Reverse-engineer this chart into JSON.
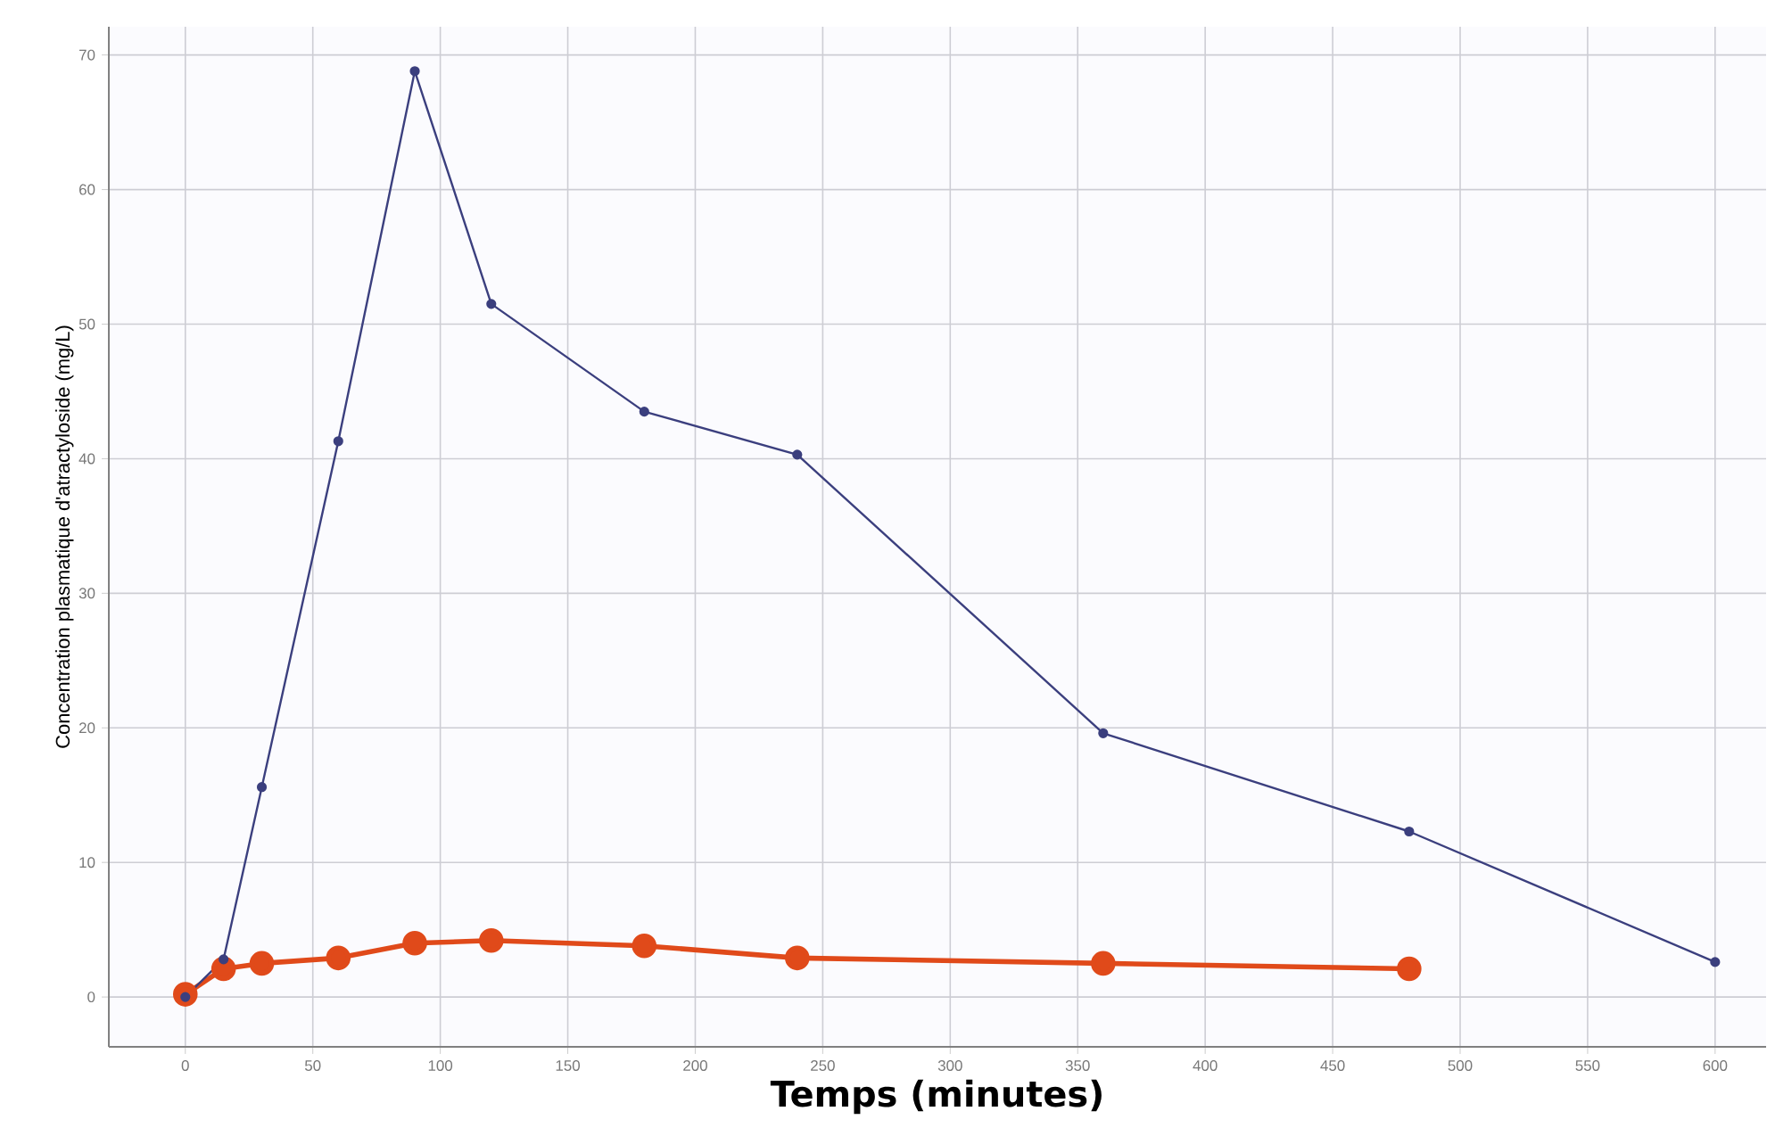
{
  "chart_data": {
    "type": "line",
    "xlabel": "Temps (minutes)",
    "ylabel": "Concentration plasmatique d'atractyloside (mg/L)",
    "x": [
      0,
      15,
      30,
      60,
      90,
      120,
      180,
      240,
      360,
      480,
      600
    ],
    "series": [
      {
        "color": "#3b3f7e",
        "values": [
          0,
          2.8,
          15.6,
          41.3,
          68.8,
          51.5,
          43.5,
          40.3,
          19.6,
          12.3,
          2.6
        ]
      },
      {
        "color": "#e04a1a",
        "x": [
          0,
          15,
          30,
          60,
          90,
          120,
          180,
          240,
          360,
          480
        ],
        "values": [
          0.2,
          2.1,
          2.5,
          2.9,
          4.0,
          4.2,
          3.8,
          2.9,
          2.5,
          2.1
        ]
      }
    ],
    "xlim": [
      -30,
      620
    ],
    "ylim": [
      -3.7,
      72.1
    ],
    "xticks": [
      0,
      50,
      100,
      150,
      200,
      250,
      300,
      350,
      400,
      450,
      500,
      550,
      600
    ],
    "yticks": [
      0,
      10,
      20,
      30,
      40,
      50,
      60,
      70
    ],
    "grid": true,
    "marker": "circle",
    "line_style": "solid"
  }
}
